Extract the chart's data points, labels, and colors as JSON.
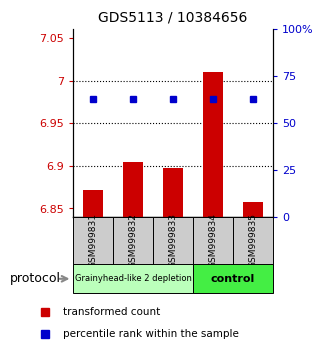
{
  "title": "GDS5113 / 10384656",
  "samples": [
    "GSM999831",
    "GSM999832",
    "GSM999833",
    "GSM999834",
    "GSM999835"
  ],
  "bar_values": [
    6.872,
    6.905,
    6.898,
    7.01,
    6.858
  ],
  "bar_base": 6.84,
  "percentile_left_yaxis": [
    6.978,
    6.978,
    6.978,
    6.978,
    6.978
  ],
  "ylim_left": [
    6.84,
    7.06
  ],
  "ylim_right": [
    0,
    100
  ],
  "yticks_left": [
    6.85,
    6.9,
    6.95,
    7.0,
    7.05
  ],
  "yticks_left_labels": [
    "6.85",
    "6.9",
    "6.95",
    "7",
    "7.05"
  ],
  "yticks_right": [
    0,
    25,
    50,
    75,
    100
  ],
  "yticks_right_labels": [
    "0",
    "25",
    "50",
    "75",
    "100%"
  ],
  "hlines": [
    7.0,
    6.95,
    6.9
  ],
  "bar_color": "#cc0000",
  "percentile_color": "#0000cc",
  "group1_label": "Grainyhead-like 2 depletion",
  "group2_label": "control",
  "group1_color": "#bbffbb",
  "group2_color": "#44ee44",
  "protocol_label": "protocol",
  "legend_bar_label": "transformed count",
  "legend_pct_label": "percentile rank within the sample",
  "tick_color_left": "#cc0000",
  "tick_color_right": "#0000cc"
}
